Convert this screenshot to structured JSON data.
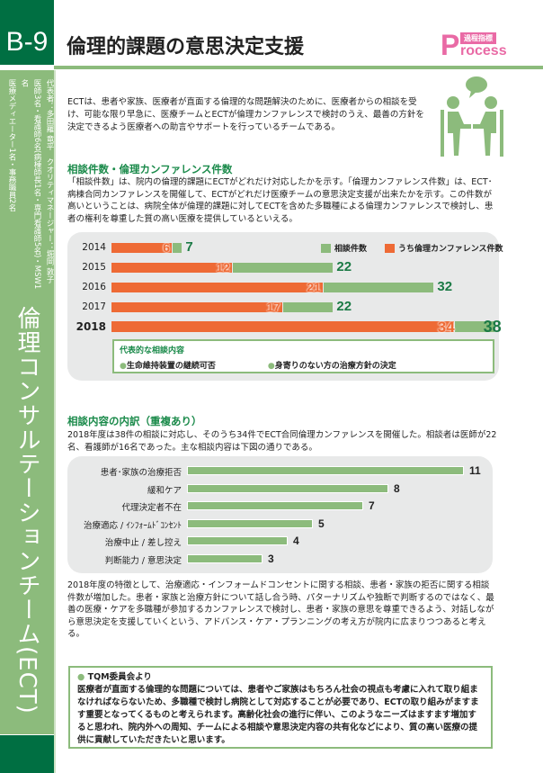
{
  "header": {
    "code": "B-9",
    "title": "倫理的課題の意思決定支援",
    "logo": {
      "tag": "過程指標",
      "P": "P",
      "rest": "rocess"
    }
  },
  "sidebar": {
    "team": "倫理コンサルテーションチーム(ECT)",
    "staff": [
      "代表者：多田羅 竜平　クオリティマネージャー：堀岡 敦子",
      "医師3名・看護師6名(病棟師長1名・専門看護師5名)・MSW1名",
      "医療メディエーター1名・事務職員2名"
    ]
  },
  "intro": "ECTは、患者や家族、医療者が直面する倫理的な問題解決のために、医療者からの相談を受け、可能な限り早急に、医療チームとECTが倫理カンファレンスで検討のうえ、最善の方針を決定できるよう医療者への助言やサポートを行っているチームである。",
  "section1": {
    "heading": "相談件数・倫理カンファレンス件数",
    "text": "「相談件数」は、院内の倫理的課題にECTがどれだけ対応したかを示す。「倫理カンファレンス件数」は、ECT･病棟合同カンファレンスを開催して、ECTがどれだけ医療チームの意思決定支援が出来たかを示す。この件数が高いということは、病院全体が倫理的課題に対してECTを含めた多職種による倫理カンファレンスで検討し、患者の権利を尊重した質の高い医療を提供しているといえる。",
    "representative": {
      "heading": "代表的な相談内容",
      "items": [
        "生命維持装置の継続可否",
        "身寄りのない方の治療方針の決定"
      ]
    }
  },
  "section2": {
    "heading": "相談内容の内訳（重複あり）",
    "text": "2018年度は38件の相談に対応し、そのうち34件でECT合同倫理カンファレンスを開催した。相談者は医師が22名、看護師が16名であった。主な相談内容は下図の通りである。",
    "analysis": "2018年度の特徴として、治療適応・インフォームドコンセントに関する相談、患者・家族の拒否に関する相談件数が増加した。患者・家族と治療方針について話し合う時、パターナリズムや独断で判断するのではなく、最善の医療・ケアを多職種が参加するカンファレンスで検討し、患者・家族の意思を尊重できるよう、対話しながら意思決定を支援していくという、アドバンス・ケア・プランニングの考え方が院内に広まりつつあると考える。"
  },
  "tqm": {
    "heading": "TQM委員会より",
    "text": "医療者が直面する倫理的な問題については、患者やご家族はもちろん社会の視点も考慮に入れて取り組まなければならないため、多職種で検討し病院として対応することが必要であり、ECTの取り組みがますます重要となってくるものと考えられます。高齢化社会の進行に伴い、このようなニーズはますます増加すると思われ、院内外への周知、チームによる相談や意思決定内容の共有化などにより、質の高い医療の提供に貢献していただきたいと思います。"
  },
  "colors": {
    "dark_green": "#006f42",
    "light_green": "#8cbb7c",
    "orange": "#ee6a35",
    "pink": "#e96aa5"
  },
  "chart_data": [
    {
      "type": "bar",
      "orientation": "horizontal",
      "categories": [
        "2014",
        "2015",
        "2016",
        "2017",
        "2018"
      ],
      "series": [
        {
          "name": "相談件数",
          "values": [
            7,
            22,
            32,
            22,
            38
          ],
          "color": "#8cbb7c"
        },
        {
          "name": "うち倫理カンファレンス件数",
          "values": [
            6,
            12,
            21,
            17,
            34
          ],
          "color": "#ee6a35"
        }
      ],
      "legend": "top-right",
      "xlim": [
        0,
        38
      ]
    },
    {
      "type": "bar",
      "orientation": "horizontal",
      "categories": [
        "患者･家族の治療拒否",
        "緩和ケア",
        "代理決定者不在",
        "治療適応 / ｲﾝﾌｫｰﾑﾄﾞｺﾝｾﾝﾄ",
        "治療中止 / 差し控え",
        "判断能力 / 意思決定"
      ],
      "values": [
        11,
        8,
        7,
        5,
        4,
        3
      ],
      "color": "#8cbb7c",
      "xlim": [
        0,
        11
      ]
    }
  ]
}
